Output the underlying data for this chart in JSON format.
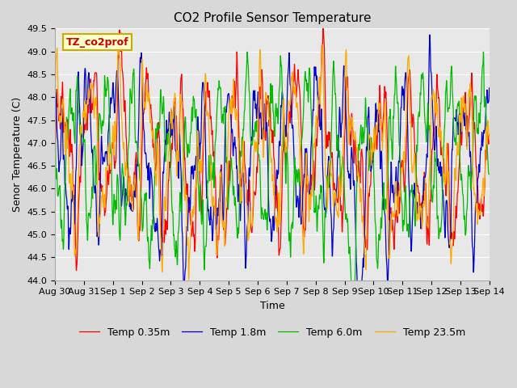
{
  "title": "CO2 Profile Sensor Temperature",
  "xlabel": "Time",
  "ylabel": "Senor Temperature (C)",
  "annotation": "TZ_co2prof",
  "ylim": [
    44.0,
    49.5
  ],
  "yticks": [
    44.0,
    44.5,
    45.0,
    45.5,
    46.0,
    46.5,
    47.0,
    47.5,
    48.0,
    48.5,
    49.0,
    49.5
  ],
  "xtick_labels": [
    "Aug 30",
    "Aug 31",
    "Sep 1",
    "Sep 2",
    "Sep 3",
    "Sep 4",
    "Sep 5",
    "Sep 6",
    "Sep 7",
    "Sep 8",
    "Sep 9",
    "Sep 10",
    "Sep 11",
    "Sep 12",
    "Sep 13",
    "Sep 14"
  ],
  "series": [
    {
      "label": "Temp 0.35m",
      "color": "#ff0000"
    },
    {
      "label": "Temp 1.8m",
      "color": "#0000cc"
    },
    {
      "label": "Temp 6.0m",
      "color": "#00bb00"
    },
    {
      "label": "Temp 23.5m",
      "color": "#ffaa00"
    }
  ],
  "bg_color": "#d8d8d8",
  "plot_bg": "#e8e8e8",
  "grid_color": "#ffffff",
  "annotation_bg": "#ffffcc",
  "annotation_edge": "#ccaa00",
  "title_fontsize": 11,
  "label_fontsize": 9,
  "tick_fontsize": 8,
  "legend_fontsize": 9,
  "linewidth": 0.9
}
